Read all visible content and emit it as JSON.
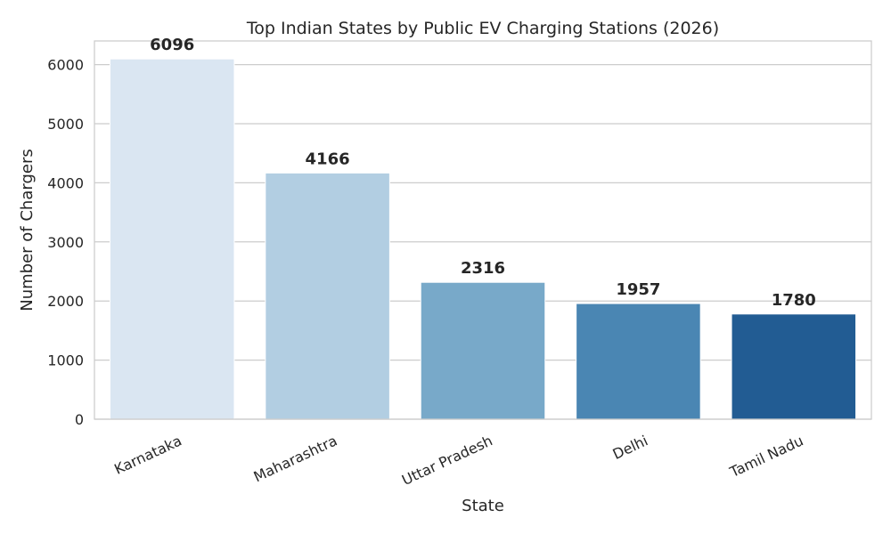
{
  "chart_data": {
    "type": "bar",
    "title": "Top Indian States by Public EV Charging Stations (2026)",
    "xlabel": "State",
    "ylabel": "Number of Chargers",
    "categories": [
      "Karnataka",
      "Maharashtra",
      "Uttar Pradesh",
      "Delhi",
      "Tamil Nadu"
    ],
    "values": [
      6096,
      4166,
      2316,
      1957,
      1780
    ],
    "data_labels": [
      "6096",
      "4166",
      "2316",
      "1957",
      "1780"
    ],
    "colors": [
      "#dae6f2",
      "#b2cee2",
      "#78a9c9",
      "#4a86b3",
      "#225c93"
    ],
    "yticks": [
      0,
      1000,
      2000,
      3000,
      4000,
      5000,
      6000
    ],
    "ytick_labels": [
      "0",
      "1000",
      "2000",
      "3000",
      "4000",
      "5000",
      "6000"
    ],
    "ylim": [
      0,
      6400.8
    ],
    "grid": true,
    "legend": "none"
  }
}
